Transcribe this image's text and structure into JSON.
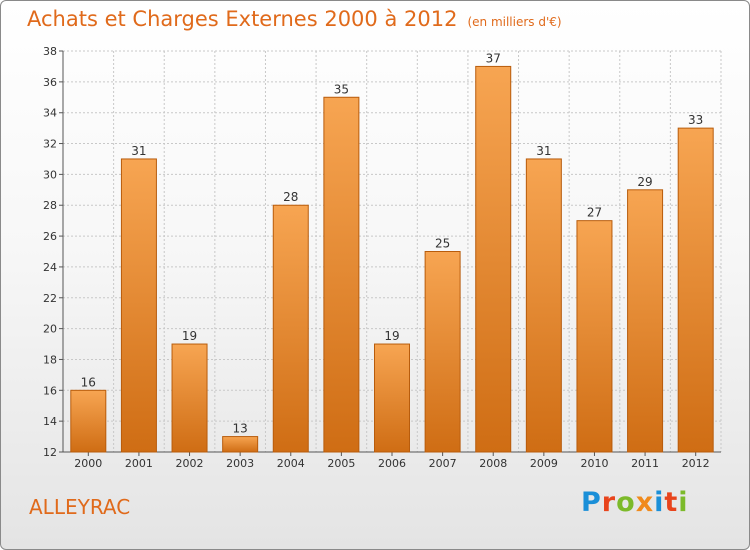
{
  "header": {
    "title": "Achats et Charges Externes 2000 à 2012",
    "subtitle": "(en milliers d'€)"
  },
  "footer": {
    "city": "ALLEYRAC",
    "logo": {
      "text": "Proxiti",
      "letter_colors": [
        "#1a8fd8",
        "#e8441c",
        "#7cba2a",
        "#f08a1c",
        "#1a8fd8",
        "#e8441c",
        "#7cba2a"
      ]
    }
  },
  "colors": {
    "bar_light": "#f7a552",
    "bar_dark": "#cf6d14",
    "bar_border": "#b85c0c",
    "title": "#e06a1b",
    "grid": "#c8c8c8"
  },
  "chart_data": {
    "type": "bar",
    "title": "Achats et Charges Externes 2000 à 2012",
    "subtitle": "(en milliers d'€)",
    "categories": [
      "2000",
      "2001",
      "2002",
      "2003",
      "2004",
      "2005",
      "2006",
      "2007",
      "2008",
      "2009",
      "2010",
      "2011",
      "2012"
    ],
    "values": [
      16,
      31,
      19,
      13,
      28,
      35,
      19,
      25,
      37,
      31,
      27,
      29,
      33
    ],
    "ylim": [
      12,
      38
    ],
    "yticks": [
      12,
      14,
      16,
      18,
      20,
      22,
      24,
      26,
      28,
      30,
      32,
      34,
      36,
      38
    ],
    "grid": true,
    "data_labels": true
  }
}
